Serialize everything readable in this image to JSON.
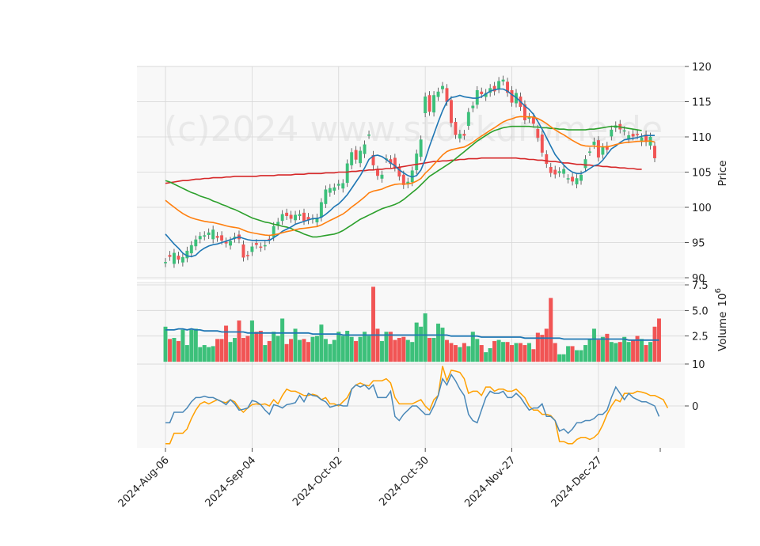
{
  "chart_data": {
    "type": "candlestick",
    "watermark": "(c)2024 www.stockdrome.de",
    "xlabels": [
      "2024-Aug-06",
      "2024-Sep-04",
      "2024-Oct-02",
      "2024-Oct-30",
      "2024-Nov-27",
      "2024-Dec-27"
    ],
    "price_panel": {
      "ylabel": "Price",
      "yticks": [
        "90",
        "95",
        "100",
        "105",
        "110",
        "115",
        "120"
      ],
      "ylim": [
        90,
        120
      ],
      "close": [
        92.2,
        93,
        93.5,
        92.6,
        92.9,
        93.8,
        94.6,
        95.4,
        95.9,
        96,
        96.4,
        96.8,
        95.7,
        95.3,
        94.9,
        95.2,
        95.8,
        95.5,
        92.9,
        93.1,
        94.4,
        94.7,
        94.3,
        94.6,
        95.4,
        97.3,
        97.9,
        99,
        98.8,
        98.4,
        98.9,
        99,
        98.1,
        98.2,
        98.4,
        98.5,
        100.7,
        102.5,
        102.7,
        102.8,
        103.3,
        103.4,
        106.2,
        107.8,
        106.8,
        108,
        108.9,
        110.3,
        106,
        104.5,
        104.6,
        106.9,
        106.2,
        105.7,
        104.4,
        103.2,
        103.6,
        105.2,
        107.6,
        109.6,
        115.7,
        113.6,
        115.9,
        116.4,
        117.2,
        115,
        112,
        110.3,
        110.4,
        110.2,
        113.5,
        114.4,
        116.6,
        116.1,
        116.2,
        116.9,
        116.5,
        117.9,
        118.1,
        116.3,
        114.9,
        116.2,
        114.3,
        112.4,
        112.8,
        111.9,
        109.9,
        107.8,
        106.2,
        104.9,
        104.7,
        105.1,
        105.4,
        104.1,
        103.7,
        104.1,
        104.6,
        106.8,
        107.9,
        109.3,
        107.1,
        108.5,
        108.2,
        111,
        111.6,
        111.1,
        110.9,
        110.2,
        110.1,
        110.3,
        109.9,
        109.3,
        110,
        107
      ],
      "open": [
        92.1,
        93.2,
        92,
        93.1,
        92.2,
        92.8,
        93.5,
        94.5,
        95.5,
        95.9,
        96.1,
        95.5,
        95.9,
        96,
        95.1,
        94.6,
        95.6,
        96.1,
        94.7,
        93.2,
        93.7,
        94.9,
        94.4,
        94.5,
        95.5,
        95.8,
        97.4,
        98.1,
        99.2,
        98.9,
        98.2,
        98.8,
        99.2,
        98.6,
        98.3,
        97.9,
        98.6,
        100.5,
        102.1,
        102.4,
        103.1,
        102.7,
        103.5,
        106,
        108.1,
        106.3,
        107.6,
        110.3,
        107.4,
        105.3,
        104.1,
        106.9,
        106.8,
        107,
        105.6,
        104.6,
        103.3,
        103.6,
        105.3,
        107.2,
        113.4,
        115.9,
        113.5,
        115.7,
        116.8,
        116.9,
        115.2,
        112.1,
        109.8,
        110.4,
        111.6,
        114.1,
        114.6,
        116.4,
        115.7,
        116.3,
        117.2,
        116.8,
        117.9,
        117.8,
        116.6,
        114.8,
        115.7,
        114.6,
        112.6,
        112.8,
        111.1,
        110.3,
        107.5,
        105.7,
        105.3,
        104.9,
        104.8,
        104,
        104.3,
        103.3,
        103.8,
        105.6,
        107.9,
        108.9,
        109.5,
        107.5,
        108.7,
        110.1,
        111.3,
        111.8,
        110.8,
        109.7,
        110.4,
        110.4,
        109.3,
        110.3,
        108.8,
        108.7
      ],
      "sma20": [
        96.2,
        95.5,
        94.8,
        94.2,
        93.5,
        93.1,
        93,
        93.2,
        93.8,
        94.2,
        94.5,
        94.7,
        94.8,
        95,
        95.2,
        95.4,
        95.6,
        95.8,
        95.6,
        95.4,
        95.3,
        95.3,
        95.3,
        95.3,
        95.3,
        95.7,
        96.1,
        96.6,
        96.9,
        97.2,
        97.6,
        97.8,
        98,
        98.2,
        98.4,
        98.4,
        98.6,
        99,
        99.5,
        100.1,
        100.5,
        101.1,
        101.8,
        102.7,
        103.6,
        104.5,
        105.6,
        106.8,
        107.3,
        107.4,
        107.2,
        106.8,
        106.3,
        105.9,
        105.3,
        104.9,
        104.5,
        104.3,
        104.5,
        105.3,
        106.8,
        108.7,
        110.4,
        112.1,
        113.7,
        115,
        115.6,
        115.7,
        115.9,
        115.7,
        115.6,
        115.5,
        115.5,
        115.7,
        116.1,
        116.5,
        116.7,
        116.8,
        116.8,
        116.5,
        116,
        115.6,
        115,
        114.4,
        113.9,
        113.2,
        112.2,
        111.1,
        109.9,
        108.7,
        107.5,
        106.7,
        106,
        105.4,
        105,
        104.8,
        104.8,
        105.1,
        105.5,
        105.9,
        106.1,
        106.7,
        107.5,
        108.3,
        108.7,
        109.2,
        109.6,
        109.7,
        109.8,
        109.9,
        110.1,
        110.2,
        110.2,
        110.2
      ],
      "sma50": [
        103.8,
        103.6,
        103.3,
        103,
        102.7,
        102.4,
        102.1,
        101.9,
        101.6,
        101.4,
        101.2,
        100.9,
        100.7,
        100.4,
        100.2,
        99.9,
        99.7,
        99.4,
        99.1,
        98.8,
        98.5,
        98.3,
        98.1,
        97.9,
        97.8,
        97.6,
        97.5,
        97.3,
        97.2,
        97,
        96.7,
        96.5,
        96.2,
        96,
        95.8,
        95.8,
        95.9,
        96,
        96.1,
        96.2,
        96.4,
        96.7,
        97.1,
        97.5,
        97.9,
        98.3,
        98.6,
        98.9,
        99.2,
        99.5,
        99.8,
        100,
        100.2,
        100.4,
        100.7,
        101.1,
        101.6,
        102.1,
        102.6,
        103.2,
        103.8,
        104.4,
        104.8,
        105.2,
        105.6,
        106,
        106.4,
        106.9,
        107.4,
        107.9,
        108.4,
        108.9,
        109.4,
        109.8,
        110.2,
        110.6,
        110.9,
        111.1,
        111.3,
        111.4,
        111.5,
        111.5,
        111.5,
        111.5,
        111.5,
        111.4,
        111.4,
        111.3,
        111.3,
        111.2,
        111.2,
        111.1,
        111.1,
        111,
        111,
        111,
        111,
        111,
        111.1,
        111.1,
        111.2,
        111.3,
        111.4,
        111.5,
        111.5,
        111.4,
        111.3,
        111.2,
        111.1,
        111,
        110.9
      ],
      "sma100": [
        103.4,
        103.5,
        103.6,
        103.7,
        103.8,
        103.8,
        103.9,
        104,
        104,
        104.1,
        104.1,
        104.2,
        104.2,
        104.2,
        104.3,
        104.3,
        104.4,
        104.4,
        104.4,
        104.4,
        104.4,
        104.4,
        104.5,
        104.5,
        104.5,
        104.5,
        104.6,
        104.6,
        104.6,
        104.6,
        104.7,
        104.7,
        104.7,
        104.8,
        104.8,
        104.8,
        104.8,
        104.9,
        104.9,
        104.9,
        105,
        105,
        105,
        105.1,
        105.1,
        105.2,
        105.2,
        105.3,
        105.3,
        105.4,
        105.4,
        105.5,
        105.5,
        105.6,
        105.7,
        105.8,
        105.9,
        106,
        106.1,
        106.2,
        106.3,
        106.4,
        106.5,
        106.5,
        106.6,
        106.6,
        106.7,
        106.7,
        106.8,
        106.8,
        106.9,
        106.9,
        106.9,
        107,
        107,
        107,
        107,
        107,
        107,
        107,
        107,
        107,
        106.9,
        106.9,
        106.8,
        106.8,
        106.7,
        106.7,
        106.6,
        106.5,
        106.5,
        106.4,
        106.3,
        106.3,
        106.2,
        106.1,
        106.1,
        106,
        106,
        105.9,
        105.9,
        105.8,
        105.8,
        105.7,
        105.7,
        105.6,
        105.6,
        105.5,
        105.5,
        105.4,
        105.4
      ]
    },
    "volume_panel": {
      "ylabel": "Volume",
      "ylabel_exp": "10",
      "ylabel_sup": "6",
      "yticks": [
        "2.5",
        "5.0",
        "7.5"
      ],
      "ylim": [
        0,
        7.5
      ],
      "values": [
        3.4,
        2.2,
        2.3,
        2,
        3.1,
        1.6,
        3.1,
        3.2,
        1.4,
        1.6,
        1.4,
        1.5,
        2.2,
        2.2,
        3.5,
        1.9,
        2.3,
        4,
        2.3,
        2.5,
        4,
        2.9,
        3,
        1.6,
        2,
        2.9,
        2.5,
        4.2,
        1.7,
        2.2,
        3.2,
        2.1,
        2.2,
        1.9,
        2.4,
        2.5,
        3.6,
        2.2,
        1.7,
        2.1,
        2.9,
        2.5,
        3,
        2.4,
        2,
        2.4,
        2.9,
        2.5,
        7.3,
        3.2,
        2,
        2.9,
        2.9,
        2.1,
        2.3,
        2.4,
        2.1,
        1.9,
        3.8,
        3.4,
        4.7,
        2.3,
        2.3,
        3.7,
        3.3,
        2.1,
        1.8,
        1.6,
        1.4,
        1.8,
        1.5,
        2.9,
        2.2,
        1.6,
        0.9,
        1.3,
        2,
        2.1,
        1.9,
        1.9,
        1.6,
        1.8,
        1.8,
        1.6,
        1.8,
        1.2,
        2.8,
        2.6,
        3.2,
        6.2,
        1.8,
        0.7,
        0.7,
        1.5,
        1.5,
        1.1,
        1.1,
        1.6,
        2.2,
        3.2,
        2.1,
        2.4,
        2.7,
        1.9,
        1.8,
        1.9,
        2.4,
        1.9,
        2.1,
        2.5,
        2.2,
        1.6,
        1.9,
        3.4,
        4.2
      ],
      "ma": [
        3.1,
        3.1,
        3.1,
        3.2,
        3.2,
        3.1,
        3.2,
        3.1,
        3.1,
        3,
        3,
        3,
        3,
        2.9,
        2.9,
        2.9,
        2.9,
        2.9,
        2.9,
        2.8,
        2.8,
        2.8,
        2.8,
        2.8,
        2.8,
        2.8,
        2.8,
        2.8,
        2.8,
        2.8,
        2.8,
        2.8,
        2.8,
        2.8,
        2.7,
        2.7,
        2.7,
        2.7,
        2.7,
        2.7,
        2.7,
        2.6,
        2.6,
        2.6,
        2.6,
        2.6,
        2.6,
        2.6,
        2.6,
        2.6,
        2.6,
        2.6,
        2.6,
        2.6,
        2.6,
        2.6,
        2.6,
        2.6,
        2.6,
        2.6,
        2.6,
        2.6,
        2.6,
        2.6,
        2.6,
        2.6,
        2.5,
        2.5,
        2.5,
        2.5,
        2.5,
        2.5,
        2.5,
        2.4,
        2.4,
        2.4,
        2.4,
        2.4,
        2.4,
        2.4,
        2.4,
        2.4,
        2.4,
        2.3,
        2.3,
        2.3,
        2.3,
        2.3,
        2.3,
        2.3,
        2.3,
        2.3,
        2.2,
        2.2,
        2.2,
        2.2,
        2.2,
        2.2,
        2.2,
        2.2,
        2.2,
        2.2,
        2.2,
        2.2,
        2.2,
        2.2,
        2.2,
        2.1,
        2.1,
        2.1,
        2.1,
        2.1,
        2.1,
        2.1,
        2.1
      ]
    },
    "indicator_panel": {
      "yticks": [
        "0",
        "10"
      ],
      "ylim": [
        -10,
        10
      ],
      "line1": [
        -4,
        -4,
        -1.5,
        -1.5,
        -1.5,
        -0.5,
        1,
        2,
        2,
        2.3,
        2,
        2,
        1.5,
        1,
        0.3,
        1.5,
        0.5,
        -1,
        -0.8,
        -0.5,
        1.3,
        1,
        0.3,
        -1,
        -2,
        0.3,
        0,
        -0.5,
        0.3,
        0.5,
        0.8,
        2.5,
        1,
        3,
        2.5,
        2.3,
        1.5,
        1,
        -0.3,
        0,
        0.3,
        0,
        0,
        4,
        5,
        4.5,
        5,
        4,
        5,
        2,
        2,
        2,
        3.5,
        -2.5,
        -3.5,
        -2,
        -1,
        0,
        0,
        -1,
        -2,
        -2,
        0,
        2.5,
        6.5,
        5,
        7.5,
        6,
        4,
        2.5,
        -2,
        -3.5,
        -4,
        -1,
        2,
        3.5,
        3,
        3,
        3.5,
        2,
        2,
        3,
        2,
        0.5,
        -1,
        -0.5,
        -0.5,
        0.5,
        -2.5,
        -2.5,
        -3.5,
        -6,
        -5.5,
        -6.5,
        -5.5,
        -4,
        -4,
        -3.5,
        -3.5,
        -3,
        -2,
        -2,
        -1,
        2,
        4.5,
        3,
        1.5,
        3,
        2,
        1.5,
        1,
        1,
        0.5,
        0,
        -2.5
      ],
      "line2": [
        -9,
        -9,
        -6.5,
        -6.5,
        -6.5,
        -5.5,
        -3,
        -1,
        0.5,
        1,
        0.5,
        1,
        1.5,
        1,
        0.8,
        1.5,
        1,
        -0.5,
        -1.5,
        -0.5,
        0.3,
        0.5,
        0.3,
        0.5,
        0,
        1.5,
        0.5,
        2.5,
        4,
        3.5,
        3.5,
        3,
        2.5,
        2.5,
        2.8,
        2.5,
        1.5,
        2,
        0.5,
        0.5,
        0,
        1,
        2,
        4,
        5,
        5.5,
        5,
        4.8,
        6,
        6,
        6,
        6.5,
        5.5,
        2,
        0.5,
        0.5,
        0.5,
        0.5,
        1,
        1.5,
        0,
        -1,
        1.5,
        2.5,
        9.5,
        6,
        8.5,
        8.3,
        8,
        6.5,
        3,
        3.5,
        3.5,
        2.5,
        4.5,
        4.5,
        3.5,
        4,
        4,
        3.5,
        3.5,
        4,
        3,
        2,
        0,
        -1,
        -1,
        -2,
        -2,
        -2.3,
        -3.5,
        -8.5,
        -8.5,
        -9,
        -9,
        -8,
        -7.5,
        -7.5,
        -8,
        -7.5,
        -6.5,
        -4.5,
        -2,
        0,
        1.5,
        1,
        3,
        3,
        3,
        3.5,
        3.3,
        3,
        2.5,
        2.5,
        2,
        1.5,
        -0.5
      ]
    },
    "colors": {
      "up": "#3cc07a",
      "down": "#f15454",
      "sma20": "#1f77b4",
      "sma50": "#2ca02c",
      "sma100": "#d62728",
      "orange": "#ff7f0e",
      "vol_ma": "#1f77b4",
      "ind_line1": "#4a88b8",
      "ind_line2": "#ffa000"
    }
  }
}
